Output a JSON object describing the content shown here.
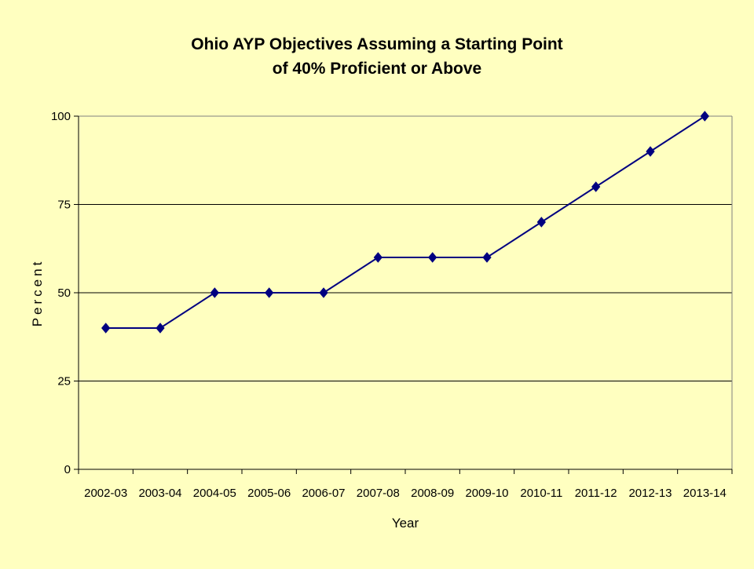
{
  "chart_data": {
    "type": "line",
    "title_lines": [
      "Ohio AYP Objectives Assuming a Starting Point",
      "of 40% Proficient or Above"
    ],
    "xlabel": "Year",
    "ylabel": "Percent",
    "categories": [
      "2002-03",
      "2003-04",
      "2004-05",
      "2005-06",
      "2006-07",
      "2007-08",
      "2008-09",
      "2009-10",
      "2010-11",
      "2011-12",
      "2012-13",
      "2013-14"
    ],
    "series": [
      {
        "values": [
          40,
          40,
          50,
          50,
          50,
          60,
          60,
          60,
          70,
          80,
          90,
          100
        ]
      }
    ],
    "ylim": [
      0,
      100
    ],
    "yticks": [
      0,
      25,
      50,
      75,
      100
    ],
    "ytick_labels": [
      "0",
      "25",
      "50",
      "75",
      "100"
    ],
    "grid": "horizontal",
    "legend": "none",
    "colors": {
      "background": "#FFFFC0",
      "line": "#000080",
      "marker": "#000080",
      "gridline": "#000000",
      "axis": "#000000"
    },
    "marker": "diamond-icon"
  }
}
